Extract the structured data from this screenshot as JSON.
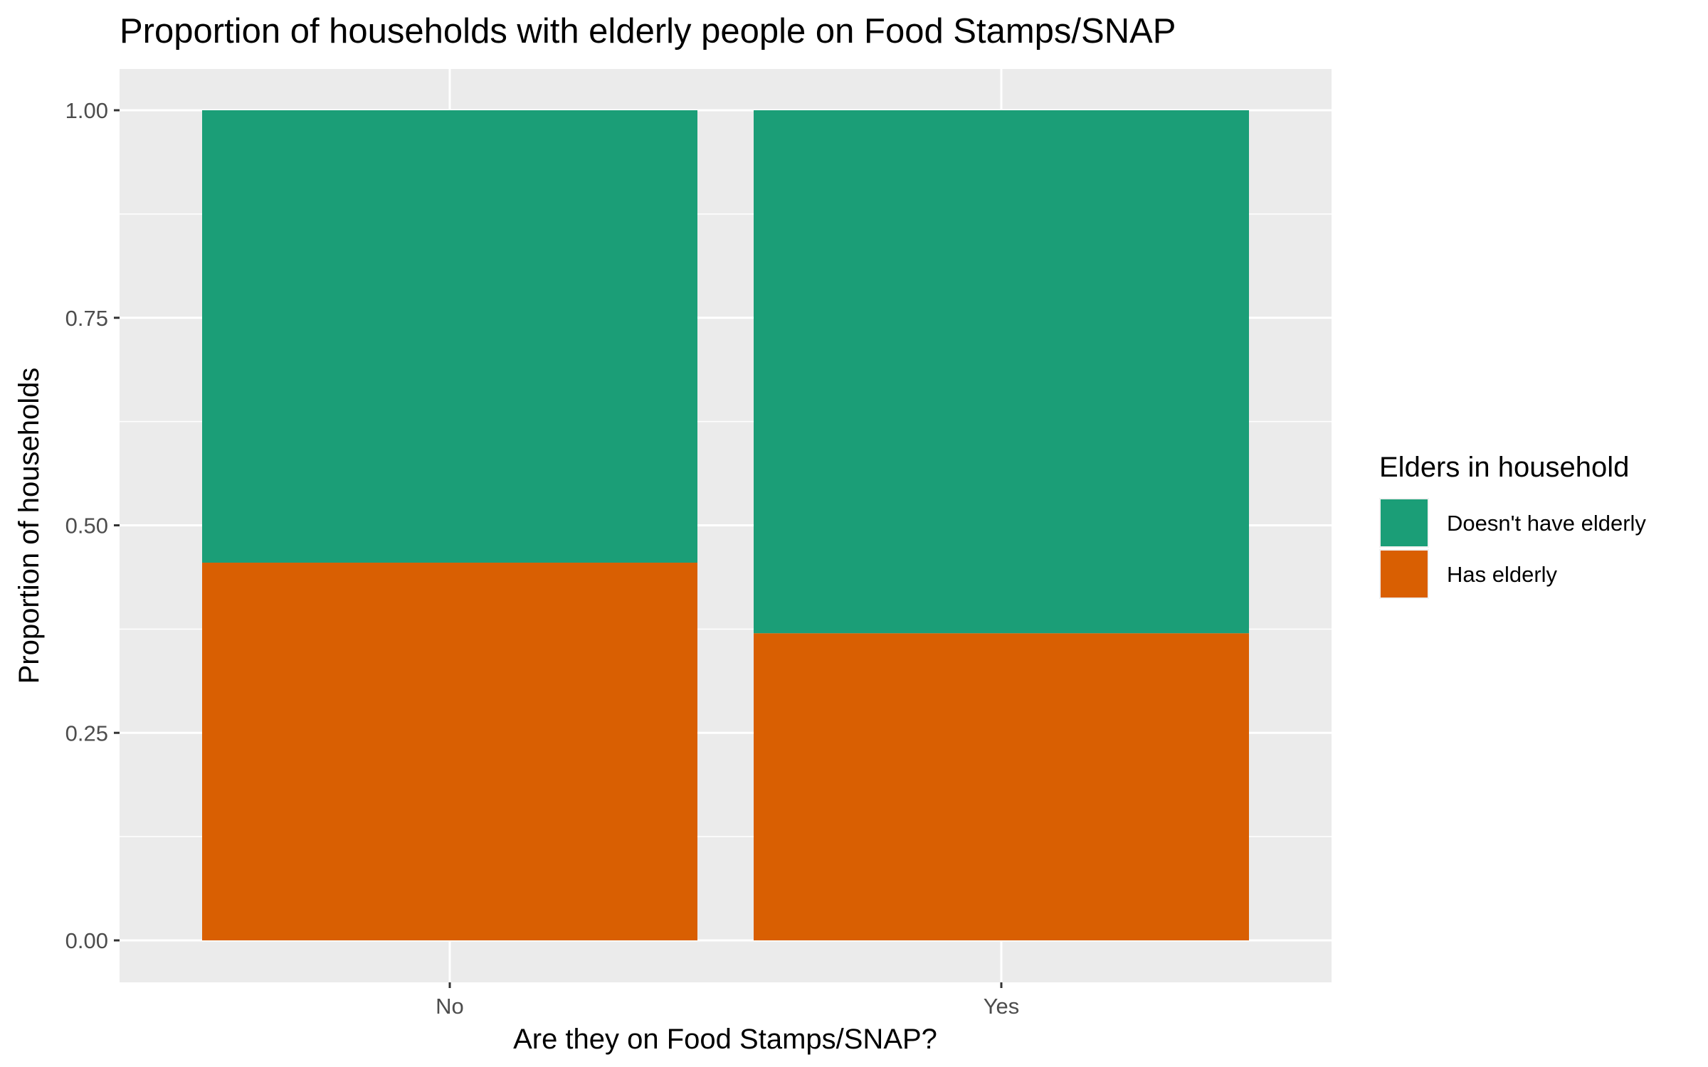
{
  "chart_data": {
    "type": "bar",
    "stacked": true,
    "title": "Proportion of households with elderly people on Food Stamps/SNAP",
    "xlabel": "Are they on Food Stamps/SNAP?",
    "ylabel": "Proportion of households",
    "categories": [
      "No",
      "Yes"
    ],
    "ylim": [
      0,
      1
    ],
    "yticks": [
      0,
      0.25,
      0.5,
      0.75,
      1
    ],
    "ytick_labels": [
      "0.00",
      "0.25",
      "0.50",
      "0.75",
      "1.00"
    ],
    "series": [
      {
        "name": "Has elderly",
        "values": [
          0.455,
          0.37
        ],
        "color": "#D95F02"
      },
      {
        "name": "Doesn't have elderly",
        "values": [
          0.545,
          0.63
        ],
        "color": "#1B9E77"
      }
    ],
    "legend": {
      "title": "Elders in household",
      "position": "right",
      "order": [
        "Doesn't have elderly",
        "Has elderly"
      ]
    },
    "grid": true,
    "panel_background": "#EBEBEB",
    "gridline_color": "#FFFFFF"
  }
}
